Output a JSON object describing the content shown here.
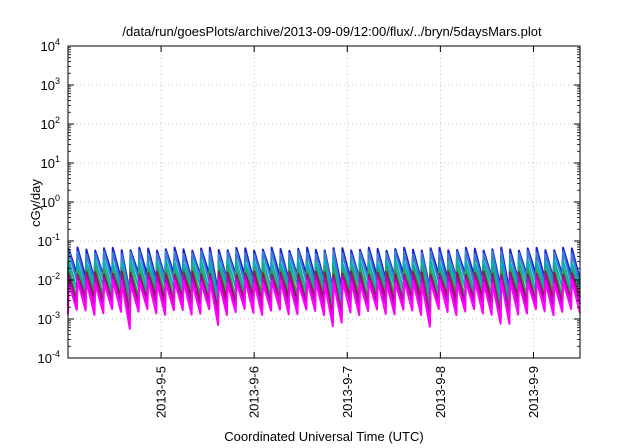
{
  "chart_data": {
    "type": "line",
    "title": "/data/run/goesPlots/archive/2013-09-09/12:00/flux/../bryn/5daysMars.plot",
    "xlabel": "Coordinated Universal Time (UTC)",
    "ylabel": "cGy/day",
    "yscale": "log",
    "ylim": [
      0.0001,
      10000
    ],
    "y_ticks": [
      {
        "base": "10",
        "exp": "-4"
      },
      {
        "base": "10",
        "exp": "-3"
      },
      {
        "base": "10",
        "exp": "-2"
      },
      {
        "base": "10",
        "exp": "-1"
      },
      {
        "base": "10",
        "exp": "0"
      },
      {
        "base": "10",
        "exp": "1"
      },
      {
        "base": "10",
        "exp": "2"
      },
      {
        "base": "10",
        "exp": "3"
      },
      {
        "base": "10",
        "exp": "4"
      }
    ],
    "xlim": [
      "2013-09-04T00:00",
      "2013-09-09T12:00"
    ],
    "x_ticks": [
      "2013-9-5",
      "2013-9-6",
      "2013-9-7",
      "2013-9-8",
      "2013-9-9"
    ],
    "grid": true,
    "pattern": {
      "cycles": 58,
      "peak_fraction": 0.08,
      "daily_low_dip": 0.35,
      "dip_days": [
        0.65,
        1.6,
        2.9,
        3.9,
        4.7
      ]
    },
    "series": [
      {
        "color": "#1f1fd6",
        "peak": 0.062,
        "trough": 0.012
      },
      {
        "color": "#3a7fd0",
        "peak": 0.05,
        "trough": 0.009
      },
      {
        "color": "#00b3b3",
        "peak": 0.03,
        "trough": 0.006
      },
      {
        "color": "#2ca25f",
        "peak": 0.02,
        "trough": 0.004
      },
      {
        "color": "#8b1a4a",
        "peak": 0.015,
        "trough": 0.003
      },
      {
        "color": "#c000c0",
        "peak": 0.012,
        "trough": 0.0022
      },
      {
        "color": "#ff00ff",
        "peak": 0.009,
        "trough": 0.0015
      }
    ]
  }
}
